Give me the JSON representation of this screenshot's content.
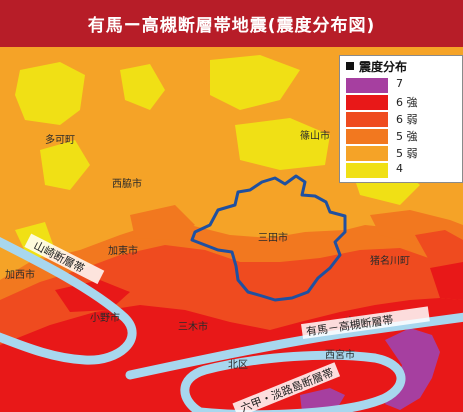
{
  "title": "有馬ー高槻断層帯地震(震度分布図)",
  "colors": {
    "title_bg": "#b71d28",
    "fault_line": "#a8d7ee",
    "city_boundary": "#1f50a0"
  },
  "legend": {
    "title": "震度分布",
    "items": [
      {
        "label": "7",
        "color": "#a63fa0"
      },
      {
        "label": "6 強",
        "color": "#e81818"
      },
      {
        "label": "6 弱",
        "color": "#ef4b1f"
      },
      {
        "label": "5 強",
        "color": "#f2781f"
      },
      {
        "label": "5 弱",
        "color": "#f5a327"
      },
      {
        "label": "4",
        "color": "#f0e015"
      }
    ]
  },
  "places": [
    {
      "name": "多可町"
    },
    {
      "name": "篠山市"
    },
    {
      "name": "西脇市"
    },
    {
      "name": "加東市"
    },
    {
      "name": "三田市"
    },
    {
      "name": "加西市"
    },
    {
      "name": "猪名川町"
    },
    {
      "name": "小野市"
    },
    {
      "name": "三木市"
    },
    {
      "name": "宝塚市"
    },
    {
      "name": "西宮市"
    },
    {
      "name": "北区"
    }
  ],
  "faults": [
    {
      "name": "山崎断層帯"
    },
    {
      "name": "有馬－高槻断層帯"
    },
    {
      "name": "六甲・淡路島断層帯"
    }
  ]
}
